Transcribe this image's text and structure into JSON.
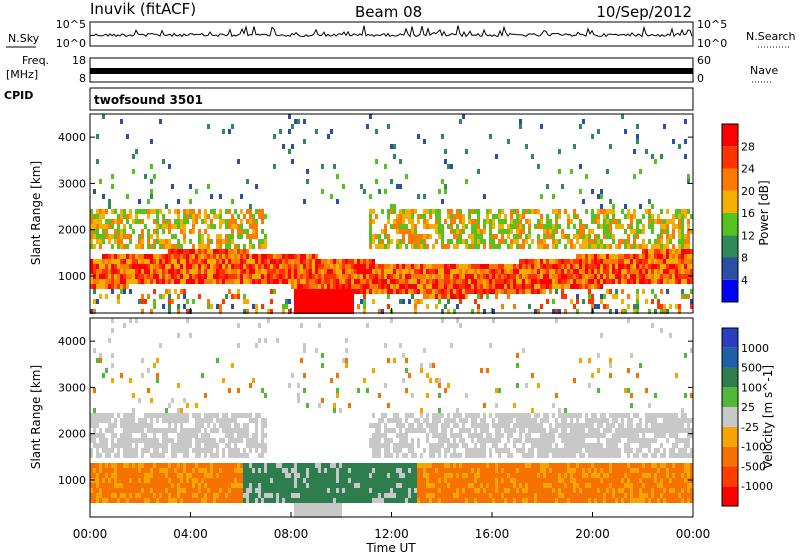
{
  "header": {
    "station": "Inuvik (fitACF)",
    "beam": "Beam 08",
    "date": "10/Sep/2012"
  },
  "params": {
    "nsky_label": "N.Sky",
    "nsearch_label": "N.Search",
    "freq_label": "Freq.",
    "freq_unit": "[MHz]",
    "nave_label": "Nave",
    "cpid_label": "CPID",
    "cpid_value": "twofsound 3501",
    "noise_ticks_left": [
      "10^5",
      "10^0"
    ],
    "noise_ticks_right": [
      "10^5",
      "10^0"
    ],
    "freq_ticks": [
      "18",
      "8"
    ],
    "nave_ticks": [
      "60",
      "0"
    ]
  },
  "colors": {
    "power": [
      "#0000ff",
      "#2a4fa3",
      "#2e8b57",
      "#55c21e",
      "#f2b100",
      "#ff7a00",
      "#ff3300",
      "#ff0000"
    ],
    "velocity": [
      "#2a3fbf",
      "#1f5fa8",
      "#2e7d4f",
      "#53b838",
      "#c8c8c8",
      "#f5a400",
      "#f57200",
      "#ff3d00",
      "#ff0000"
    ]
  },
  "chart_data": [
    {
      "type": "heatmap",
      "panel": "power",
      "ylabel": "Slant Range [km]",
      "xlim": [
        "00:00",
        "24:00"
      ],
      "ylim": [
        200,
        4500
      ],
      "yticks": [
        1000,
        2000,
        3000,
        4000
      ],
      "colorbar": {
        "label": "Power [dB]",
        "ticks": [
          4,
          8,
          12,
          16,
          20,
          24,
          28
        ],
        "range": [
          0,
          30
        ]
      },
      "features": [
        {
          "band": "F-region main echo",
          "time_range": [
            "00:00",
            "24:00"
          ],
          "range_km": [
            700,
            1500
          ],
          "power_db": 28
        },
        {
          "band": "upper echo band",
          "time_range": [
            "00:00",
            "24:00"
          ],
          "range_km": [
            1600,
            2400
          ],
          "power_db": 16
        },
        {
          "band": "near-range strong patch",
          "time_range": [
            "08:00",
            "10:00"
          ],
          "range_km": [
            250,
            700
          ],
          "power_db": 30
        }
      ]
    },
    {
      "type": "heatmap",
      "panel": "velocity",
      "ylabel": "Slant Range [km]",
      "xlabel": "Time UT",
      "xlim": [
        "00:00",
        "24:00"
      ],
      "ylim": [
        200,
        4500
      ],
      "yticks": [
        1000,
        2000,
        3000,
        4000
      ],
      "xticks": [
        "00:00",
        "04:00",
        "08:00",
        "12:00",
        "16:00",
        "20:00",
        "00:00"
      ],
      "colorbar": {
        "label": "Velocity [m s^-1]",
        "ticks": [
          1000,
          500,
          100,
          25,
          -25,
          -100,
          -500,
          -1000
        ]
      },
      "features": [
        {
          "band": "ground scatter",
          "time_range": [
            "00:00",
            "24:00"
          ],
          "range_km": [
            1500,
            2500
          ],
          "velocity": 0
        },
        {
          "band": "receding",
          "time_range": [
            "00:00",
            "07:00"
          ],
          "range_km": [
            500,
            1200
          ],
          "velocity": -300
        },
        {
          "band": "approaching",
          "time_range": [
            "06:00",
            "13:00"
          ],
          "range_km": [
            500,
            1600
          ],
          "velocity": 200
        },
        {
          "band": "receding",
          "time_range": [
            "13:00",
            "24:00"
          ],
          "range_km": [
            500,
            1200
          ],
          "velocity": -300
        }
      ]
    }
  ]
}
